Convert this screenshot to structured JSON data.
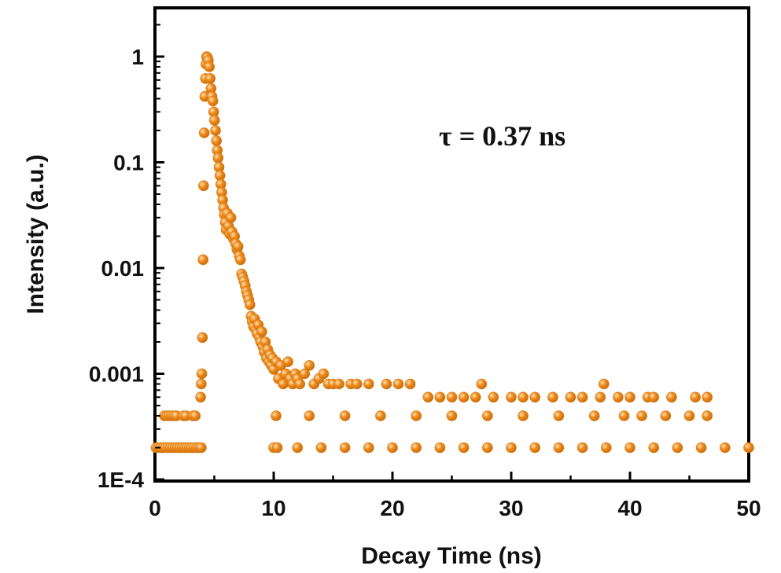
{
  "chart_data": {
    "type": "scatter",
    "xlabel": "Decay Time (ns)",
    "ylabel": "Intensity (a.u.)",
    "xlim": [
      0,
      50
    ],
    "ylim": [
      0.0001,
      3
    ],
    "yscale": "log",
    "x_ticks": [
      0,
      10,
      20,
      30,
      40,
      50
    ],
    "x_tick_labels": [
      "0",
      "10",
      "20",
      "30",
      "40",
      "50"
    ],
    "y_ticks": [
      0.0001,
      0.001,
      0.01,
      0.1,
      1
    ],
    "y_tick_labels": [
      "1E-4",
      "0.001",
      "0.01",
      "0.1",
      "1"
    ],
    "annotation": "τ = 0.37 ns",
    "grid": false,
    "marker_color": "#f08c1e",
    "floor_levels": [
      0.0002,
      0.0004,
      0.0006,
      0.0008
    ],
    "points": [
      [
        0.1,
        0.0002
      ],
      [
        0.3,
        0.0002
      ],
      [
        0.5,
        0.0002
      ],
      [
        0.7,
        0.0002
      ],
      [
        0.9,
        0.0002
      ],
      [
        1.1,
        0.0002
      ],
      [
        1.3,
        0.0002
      ],
      [
        1.5,
        0.0002
      ],
      [
        1.7,
        0.0002
      ],
      [
        1.9,
        0.0002
      ],
      [
        2.1,
        0.0002
      ],
      [
        2.3,
        0.0002
      ],
      [
        2.5,
        0.0002
      ],
      [
        2.7,
        0.0002
      ],
      [
        2.9,
        0.0002
      ],
      [
        3.1,
        0.0002
      ],
      [
        3.3,
        0.0002
      ],
      [
        3.5,
        0.0002
      ],
      [
        3.7,
        0.0002
      ],
      [
        3.9,
        0.0002
      ],
      [
        0.8,
        0.0004
      ],
      [
        1.0,
        0.0004
      ],
      [
        1.2,
        0.0004
      ],
      [
        1.4,
        0.0004
      ],
      [
        1.6,
        0.0004
      ],
      [
        1.8,
        0.0004
      ],
      [
        2.4,
        0.0004
      ],
      [
        2.6,
        0.0004
      ],
      [
        3.2,
        0.0004
      ],
      [
        3.4,
        0.0004
      ],
      [
        3.85,
        0.0006
      ],
      [
        3.9,
        0.0008
      ],
      [
        3.95,
        0.001
      ],
      [
        4.0,
        0.0022
      ],
      [
        4.05,
        0.012
      ],
      [
        4.1,
        0.06
      ],
      [
        4.15,
        0.19
      ],
      [
        4.2,
        0.42
      ],
      [
        4.25,
        0.62
      ],
      [
        4.3,
        0.85
      ],
      [
        4.35,
        1.0
      ],
      [
        4.42,
        0.98
      ],
      [
        4.5,
        0.92
      ],
      [
        4.58,
        0.8
      ],
      [
        4.65,
        0.62
      ],
      [
        4.72,
        0.5
      ],
      [
        4.8,
        0.42
      ],
      [
        4.88,
        0.38
      ],
      [
        4.95,
        0.3
      ],
      [
        5.02,
        0.25
      ],
      [
        5.1,
        0.2
      ],
      [
        5.18,
        0.16
      ],
      [
        5.25,
        0.13
      ],
      [
        5.32,
        0.11
      ],
      [
        5.4,
        0.09
      ],
      [
        5.48,
        0.075
      ],
      [
        5.55,
        0.062
      ],
      [
        5.62,
        0.052
      ],
      [
        5.7,
        0.044
      ],
      [
        5.78,
        0.037
      ],
      [
        5.85,
        0.032
      ],
      [
        5.92,
        0.027
      ],
      [
        6.0,
        0.023
      ],
      [
        6.1,
        0.033
      ],
      [
        6.2,
        0.025
      ],
      [
        6.3,
        0.021
      ],
      [
        6.4,
        0.03
      ],
      [
        6.5,
        0.022
      ],
      [
        6.6,
        0.019
      ],
      [
        6.7,
        0.02
      ],
      [
        6.8,
        0.017
      ],
      [
        6.9,
        0.015
      ],
      [
        7.0,
        0.016
      ],
      [
        7.1,
        0.013
      ],
      [
        7.2,
        0.012
      ],
      [
        7.3,
        0.0088
      ],
      [
        7.4,
        0.0082
      ],
      [
        7.5,
        0.0075
      ],
      [
        7.6,
        0.0068
      ],
      [
        7.7,
        0.006
      ],
      [
        7.8,
        0.0055
      ],
      [
        7.9,
        0.005
      ],
      [
        8.0,
        0.0045
      ],
      [
        8.1,
        0.0035
      ],
      [
        8.2,
        0.0031
      ],
      [
        8.3,
        0.0028
      ],
      [
        8.4,
        0.0033
      ],
      [
        8.5,
        0.0026
      ],
      [
        8.6,
        0.0024
      ],
      [
        8.7,
        0.0029
      ],
      [
        8.8,
        0.0022
      ],
      [
        8.9,
        0.002
      ],
      [
        9.0,
        0.0025
      ],
      [
        9.1,
        0.0018
      ],
      [
        9.2,
        0.0016
      ],
      [
        9.3,
        0.002
      ],
      [
        9.4,
        0.0014
      ],
      [
        9.5,
        0.0017
      ],
      [
        9.6,
        0.0013
      ],
      [
        9.7,
        0.0015
      ],
      [
        9.8,
        0.0012
      ],
      [
        9.9,
        0.0014
      ],
      [
        10.0,
        0.0011
      ],
      [
        10.2,
        0.0013
      ],
      [
        10.4,
        0.0009
      ],
      [
        10.6,
        0.0012
      ],
      [
        10.8,
        0.0008
      ],
      [
        11.0,
        0.001
      ],
      [
        11.2,
        0.0013
      ],
      [
        11.4,
        0.0009
      ],
      [
        11.6,
        0.0008
      ],
      [
        11.8,
        0.001
      ],
      [
        12.0,
        0.0009
      ],
      [
        12.2,
        0.0008
      ],
      [
        12.6,
        0.001
      ],
      [
        13.0,
        0.0012
      ],
      [
        13.4,
        0.0008
      ],
      [
        13.8,
        0.0009
      ],
      [
        14.2,
        0.001
      ],
      [
        14.6,
        0.0008
      ],
      [
        15.0,
        0.0008
      ],
      [
        15.5,
        0.0008
      ],
      [
        16.5,
        0.0008
      ],
      [
        17.0,
        0.0008
      ],
      [
        18.0,
        0.0008
      ],
      [
        19.5,
        0.0008
      ],
      [
        20.5,
        0.0008
      ],
      [
        21.5,
        0.0008
      ],
      [
        27.5,
        0.0008
      ],
      [
        37.8,
        0.0008
      ],
      [
        23.0,
        0.0006
      ],
      [
        24.0,
        0.0006
      ],
      [
        25.0,
        0.0006
      ],
      [
        26.0,
        0.0006
      ],
      [
        27.0,
        0.0006
      ],
      [
        28.5,
        0.0006
      ],
      [
        30.0,
        0.0006
      ],
      [
        31.0,
        0.0006
      ],
      [
        32.0,
        0.0006
      ],
      [
        33.5,
        0.0006
      ],
      [
        35.0,
        0.0006
      ],
      [
        36.0,
        0.0006
      ],
      [
        37.5,
        0.0006
      ],
      [
        39.0,
        0.0006
      ],
      [
        40.0,
        0.0006
      ],
      [
        41.5,
        0.0006
      ],
      [
        42.0,
        0.0006
      ],
      [
        43.5,
        0.0006
      ],
      [
        45.5,
        0.0006
      ],
      [
        46.5,
        0.0006
      ],
      [
        10.2,
        0.0004
      ],
      [
        13.0,
        0.0004
      ],
      [
        16.0,
        0.0004
      ],
      [
        19.0,
        0.0004
      ],
      [
        22.0,
        0.0004
      ],
      [
        25.0,
        0.0004
      ],
      [
        28.0,
        0.0004
      ],
      [
        31.0,
        0.0004
      ],
      [
        34.0,
        0.0004
      ],
      [
        37.0,
        0.0004
      ],
      [
        39.5,
        0.0004
      ],
      [
        41.0,
        0.0004
      ],
      [
        43.0,
        0.0004
      ],
      [
        45.0,
        0.0004
      ],
      [
        46.5,
        0.0004
      ],
      [
        10.0,
        0.0002
      ],
      [
        10.3,
        0.0002
      ],
      [
        12.0,
        0.0002
      ],
      [
        14.0,
        0.0002
      ],
      [
        16.0,
        0.0002
      ],
      [
        18.0,
        0.0002
      ],
      [
        20.0,
        0.0002
      ],
      [
        22.0,
        0.0002
      ],
      [
        24.0,
        0.0002
      ],
      [
        26.0,
        0.0002
      ],
      [
        28.0,
        0.0002
      ],
      [
        30.0,
        0.0002
      ],
      [
        32.0,
        0.0002
      ],
      [
        34.0,
        0.0002
      ],
      [
        36.0,
        0.0002
      ],
      [
        38.0,
        0.0002
      ],
      [
        40.0,
        0.0002
      ],
      [
        42.0,
        0.0002
      ],
      [
        44.0,
        0.0002
      ],
      [
        46.0,
        0.0002
      ],
      [
        48.0,
        0.0002
      ],
      [
        50.0,
        0.0002
      ]
    ]
  }
}
